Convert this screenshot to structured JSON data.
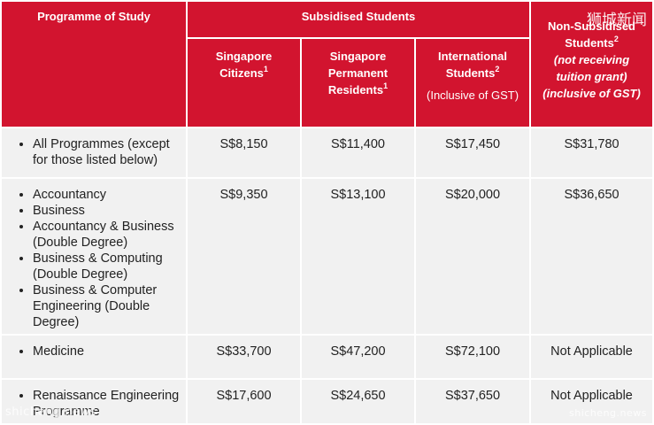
{
  "headers": {
    "programme": "Programme of Study",
    "subsidised": "Subsidised Students",
    "citizens": "Singapore Citizens",
    "citizens_note": "1",
    "pr_line1": "Singapore Permanent",
    "pr_line2": "Residents",
    "pr_note": "1",
    "intl_line1": "International",
    "intl_line2": "Students",
    "intl_note": "2",
    "intl_gst": "(Inclusive of GST)",
    "nonsub_line1": "Non-Subsidised",
    "nonsub_line2": "Students",
    "nonsub_note": "2",
    "nonsub_sub1": "(not receiving",
    "nonsub_sub2": "tuition grant)",
    "nonsub_sub3": "(inclusive of GST)"
  },
  "rows": [
    {
      "programmes": [
        "All Programmes (except for those listed below)"
      ],
      "citizens": "S$8,150",
      "pr": "S$11,400",
      "intl": "S$17,450",
      "nonsub": "S$31,780"
    },
    {
      "programmes": [
        "Accountancy",
        "Business",
        "Accountancy & Business (Double Degree)",
        "Business & Computing (Double Degree)",
        "Business & Computer Engineering (Double Degree)"
      ],
      "citizens": "S$9,350",
      "pr": "S$13,100",
      "intl": "S$20,000",
      "nonsub": "S$36,650"
    },
    {
      "programmes": [
        "Medicine"
      ],
      "citizens": "S$33,700",
      "pr": "S$47,200",
      "intl": "S$72,100",
      "nonsub": "Not  Applicable"
    },
    {
      "programmes": [
        "Renaissance Engineering Programme"
      ],
      "citizens": "S$17,600",
      "pr": "S$24,650",
      "intl": "S$37,650",
      "nonsub": "Not  Applicable"
    }
  ],
  "watermarks": {
    "chinese": "狮城新闻",
    "english_left": "shicheng.news",
    "english_right": "shicheng.news"
  }
}
